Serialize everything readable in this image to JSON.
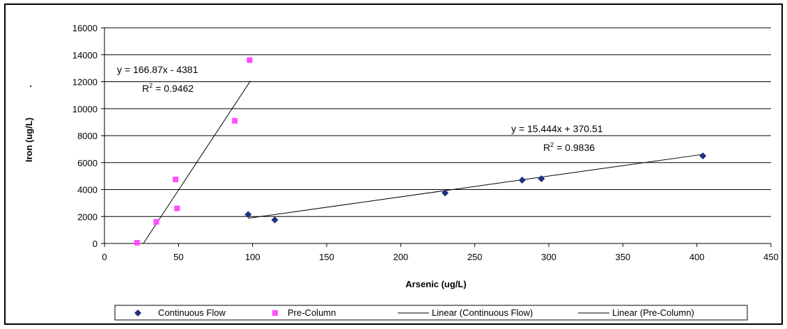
{
  "chart_data": {
    "type": "scatter",
    "xlabel": "Arsenic (ug/L)",
    "ylabel": "Iron (ug/L)",
    "ylabel_mark": ".",
    "xlim": [
      0,
      450
    ],
    "ylim": [
      0,
      16000
    ],
    "x_ticks": [
      "0",
      "50",
      "100",
      "150",
      "200",
      "250",
      "300",
      "350",
      "400",
      "450"
    ],
    "y_ticks": [
      "0",
      "2000",
      "4000",
      "6000",
      "8000",
      "10000",
      "12000",
      "14000",
      "16000"
    ],
    "grid": true,
    "legend_position": "bottom",
    "series": [
      {
        "name": "Continuous Flow",
        "color": "#1f2f7f",
        "marker": "diamond",
        "points": [
          [
            97,
            2150
          ],
          [
            115,
            1750
          ],
          [
            230,
            3750
          ],
          [
            282,
            4700
          ],
          [
            295,
            4800
          ],
          [
            404,
            6500
          ]
        ]
      },
      {
        "name": "Pre-Column",
        "color": "#ff4dff",
        "marker": "square",
        "points": [
          [
            22,
            50
          ],
          [
            35,
            1600
          ],
          [
            48,
            4750
          ],
          [
            49,
            2600
          ],
          [
            88,
            9100
          ],
          [
            98,
            13600
          ]
        ]
      }
    ],
    "trendlines": [
      {
        "name": "Linear (Continuous Flow)",
        "slope": 15.444,
        "intercept": 370.51,
        "x_range": [
          97,
          404
        ],
        "equation": "y = 15.444x + 370.51",
        "r2_label": "R",
        "r2_sup": "2",
        "r2_value": "= 0.9836"
      },
      {
        "name": "Linear (Pre-Column)",
        "slope": 166.87,
        "intercept": -4381,
        "x_range": [
          26.25,
          98.5
        ],
        "equation": "y = 166.87x - 4381",
        "r2_label": "R",
        "r2_sup": "2",
        "r2_value": "= 0.9462"
      }
    ]
  }
}
